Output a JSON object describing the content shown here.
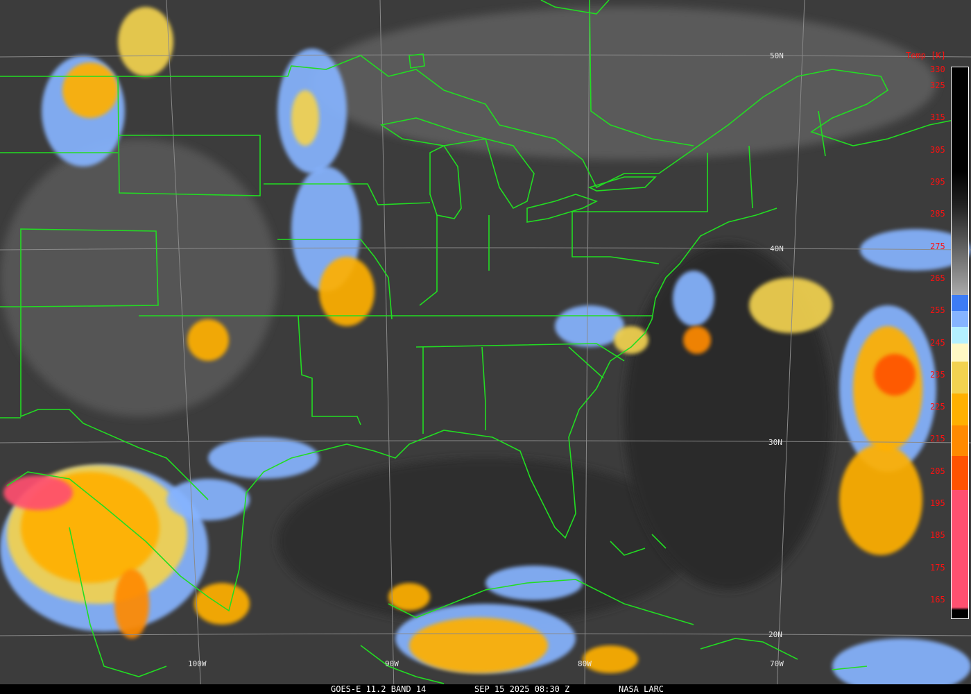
{
  "caption": {
    "product": "GOES-E 11.2 BAND 14",
    "datetime": "SEP 15 2025 08:30 Z",
    "source": "NASA LARC"
  },
  "grid": {
    "latitudes": [
      "50N",
      "40N",
      "30N",
      "20N"
    ],
    "longitudes": [
      "100W",
      "90W",
      "80W",
      "70W"
    ]
  },
  "colorbar": {
    "title": "Temp [K]",
    "ticks": [
      "330",
      "325",
      "315",
      "305",
      "295",
      "285",
      "275",
      "265",
      "255",
      "245",
      "235",
      "225",
      "215",
      "205",
      "195",
      "185",
      "175",
      "165"
    ],
    "colors": {
      "blue": "#3d7cf5",
      "light_blue": "#86b4ff",
      "cyan": "#b4f0ff",
      "pale_yellow": "#fff8c4",
      "yellow": "#f2d250",
      "amber": "#ffb000",
      "orange": "#ff8a00",
      "red_orange": "#ff5200",
      "pink": "#ff5070"
    }
  },
  "colors": {
    "boundaries": "#22dd22",
    "tick_labels": "#ff1010",
    "background": "#3a3a3a"
  }
}
